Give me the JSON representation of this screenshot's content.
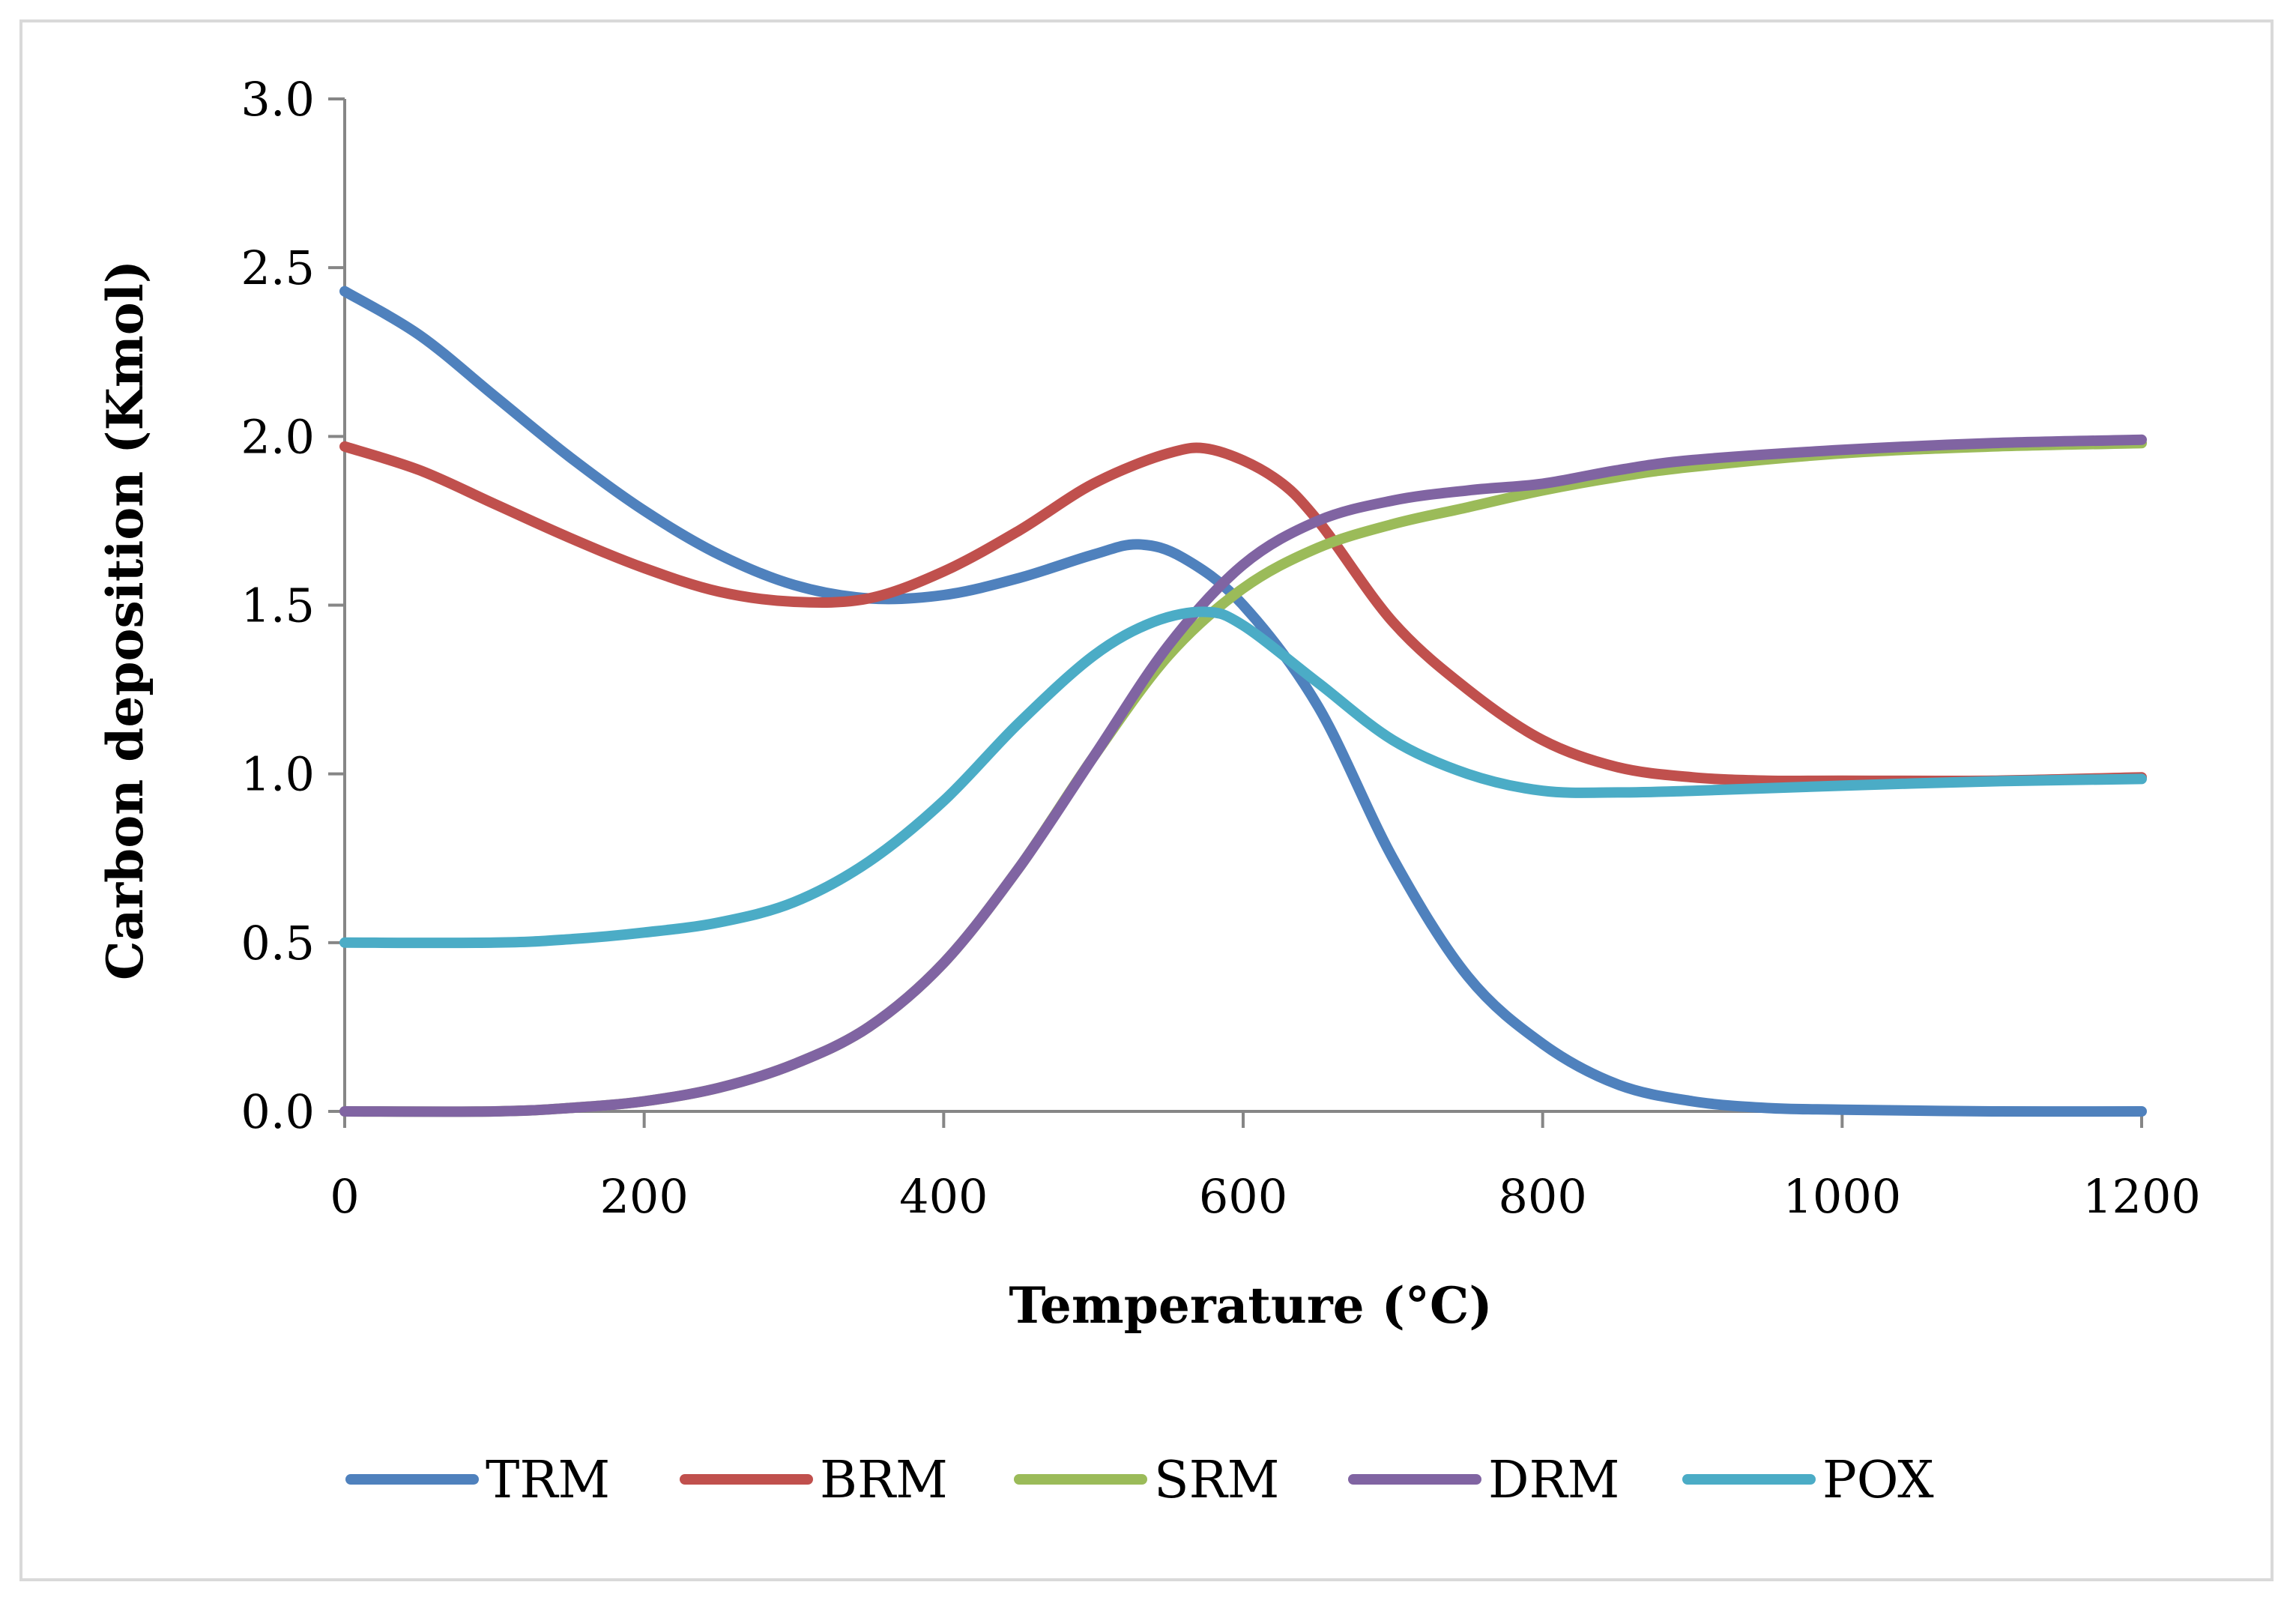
{
  "chart_data": {
    "type": "line",
    "title": "",
    "xlabel": "Temperature (°C)",
    "ylabel": "Carbon deposition (Kmol)",
    "xlim": [
      0,
      1200
    ],
    "ylim": [
      0,
      3.0
    ],
    "x_ticks": [
      0,
      200,
      400,
      600,
      800,
      1000,
      1200
    ],
    "x_tick_labels": [
      "0",
      "200",
      "400",
      "600",
      "800",
      "1000",
      "1200"
    ],
    "y_ticks": [
      0,
      0.5,
      1.0,
      1.5,
      2.0,
      2.5,
      3.0
    ],
    "y_tick_labels": [
      "0.0",
      "0.5",
      "1.0",
      "1.5",
      "2.0",
      "2.5",
      "3.0"
    ],
    "grid": false,
    "legend_position": "bottom",
    "series": [
      {
        "name": "TRM",
        "color": "#4f81bd",
        "x": [
          0,
          50,
          100,
          150,
          200,
          250,
          300,
          350,
          400,
          450,
          500,
          530,
          560,
          600,
          650,
          700,
          750,
          800,
          850,
          900,
          950,
          1000,
          1100,
          1200
        ],
        "y": [
          2.43,
          2.3,
          2.12,
          1.94,
          1.78,
          1.65,
          1.56,
          1.52,
          1.53,
          1.58,
          1.65,
          1.68,
          1.64,
          1.5,
          1.2,
          0.75,
          0.4,
          0.2,
          0.08,
          0.03,
          0.01,
          0.005,
          0.0,
          0.0
        ]
      },
      {
        "name": "BRM",
        "color": "#c0504d",
        "x": [
          0,
          50,
          100,
          150,
          200,
          250,
          300,
          350,
          400,
          450,
          500,
          550,
          580,
          620,
          650,
          700,
          750,
          800,
          850,
          900,
          950,
          1000,
          1100,
          1200
        ],
        "y": [
          1.97,
          1.9,
          1.8,
          1.7,
          1.61,
          1.54,
          1.51,
          1.52,
          1.6,
          1.72,
          1.86,
          1.95,
          1.96,
          1.88,
          1.75,
          1.45,
          1.25,
          1.1,
          1.02,
          0.99,
          0.98,
          0.98,
          0.98,
          0.99
        ]
      },
      {
        "name": "SRM",
        "color": "#9bbb59",
        "x": [
          0,
          100,
          150,
          200,
          250,
          300,
          350,
          400,
          450,
          500,
          550,
          600,
          650,
          700,
          750,
          800,
          850,
          900,
          1000,
          1100,
          1200
        ],
        "y": [
          0.0,
          0.0,
          0.01,
          0.03,
          0.07,
          0.14,
          0.25,
          0.44,
          0.72,
          1.05,
          1.35,
          1.55,
          1.67,
          1.74,
          1.79,
          1.84,
          1.88,
          1.91,
          1.95,
          1.97,
          1.98
        ]
      },
      {
        "name": "DRM",
        "color": "#8064a2",
        "x": [
          0,
          100,
          150,
          200,
          250,
          300,
          350,
          400,
          450,
          500,
          550,
          600,
          650,
          700,
          750,
          800,
          850,
          900,
          1000,
          1100,
          1200
        ],
        "y": [
          0.0,
          0.0,
          0.01,
          0.03,
          0.07,
          0.14,
          0.25,
          0.44,
          0.72,
          1.05,
          1.38,
          1.62,
          1.75,
          1.81,
          1.84,
          1.86,
          1.9,
          1.93,
          1.96,
          1.98,
          1.99
        ]
      },
      {
        "name": "POX",
        "color": "#4bacc6",
        "x": [
          0,
          100,
          150,
          200,
          250,
          300,
          350,
          400,
          450,
          500,
          540,
          575,
          600,
          650,
          700,
          750,
          800,
          850,
          900,
          1000,
          1100,
          1200
        ],
        "y": [
          0.5,
          0.5,
          0.51,
          0.53,
          0.56,
          0.62,
          0.74,
          0.92,
          1.15,
          1.35,
          1.45,
          1.48,
          1.44,
          1.27,
          1.1,
          1.0,
          0.95,
          0.945,
          0.95,
          0.965,
          0.978,
          0.985
        ]
      }
    ]
  }
}
